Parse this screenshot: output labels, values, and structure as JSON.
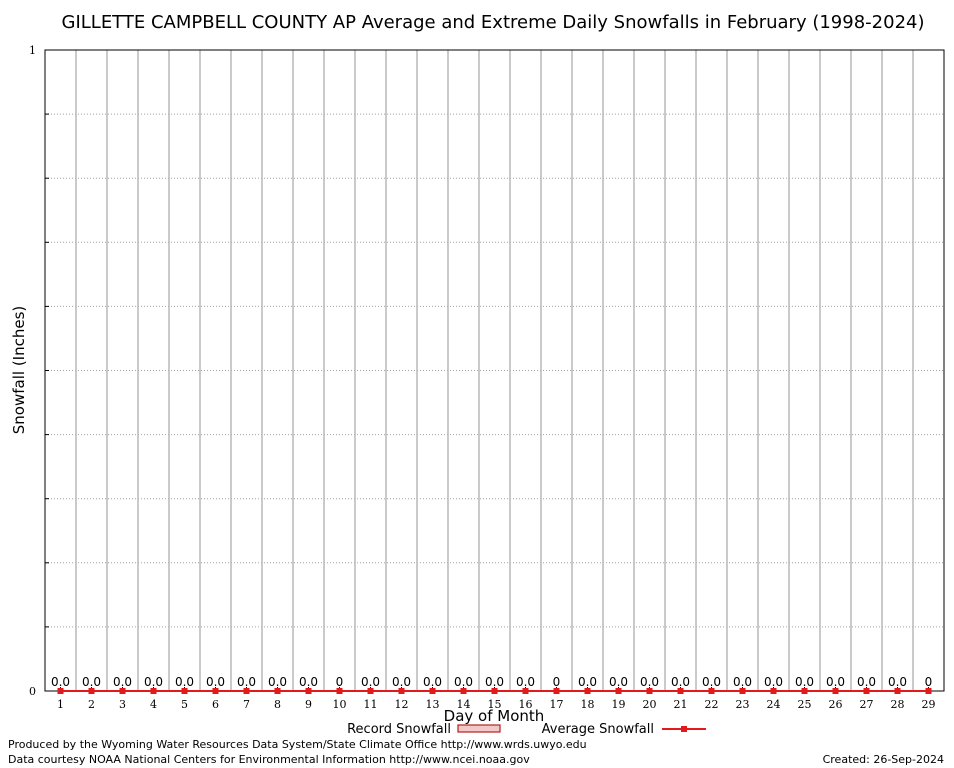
{
  "chart_data": {
    "type": "line",
    "title": "GILLETTE CAMPBELL COUNTY AP Average and Extreme Daily Snowfalls in February (1998-2024)",
    "xlabel": "Day of Month",
    "ylabel": "Snowfall (Inches)",
    "ylim": [
      0,
      1
    ],
    "y_ticks": [
      "0",
      "1"
    ],
    "grid": true,
    "categories": [
      "1",
      "2",
      "3",
      "4",
      "5",
      "6",
      "7",
      "8",
      "9",
      "10",
      "11",
      "12",
      "13",
      "14",
      "15",
      "16",
      "17",
      "18",
      "19",
      "20",
      "21",
      "22",
      "23",
      "24",
      "25",
      "26",
      "27",
      "28",
      "29"
    ],
    "series": [
      {
        "name": "Record Snowfall",
        "kind": "bar",
        "color": "#b22222",
        "values": [
          0,
          0,
          0,
          0,
          0,
          0,
          0,
          0,
          0,
          0,
          0,
          0,
          0,
          0,
          0,
          0,
          0,
          0,
          0,
          0,
          0,
          0,
          0,
          0,
          0,
          0,
          0,
          0,
          0
        ]
      },
      {
        "name": "Average Snowfall",
        "kind": "line",
        "color": "#e31a1c",
        "values": [
          0,
          0,
          0,
          0,
          0,
          0,
          0,
          0,
          0,
          0,
          0,
          0,
          0,
          0,
          0,
          0,
          0,
          0,
          0,
          0,
          0,
          0,
          0,
          0,
          0,
          0,
          0,
          0,
          0
        ]
      }
    ],
    "data_labels": [
      "0.0",
      "0.0",
      "0.0",
      "0.0",
      "0.0",
      "0.0",
      "0.0",
      "0.0",
      "0.0",
      "0",
      "0.0",
      "0.0",
      "0.0",
      "0.0",
      "0.0",
      "0.0",
      "0",
      "0.0",
      "0.0",
      "0.0",
      "0.0",
      "0.0",
      "0.0",
      "0.0",
      "0.0",
      "0.0",
      "0.0",
      "0.0",
      "0"
    ],
    "legend_placement": "bottom-center"
  },
  "footer": {
    "produced_by": "Produced by the Wyoming Water Resources Data System/State Climate Office http://www.wrds.uwyo.edu",
    "courtesy": "Data courtesy NOAA National Centers for Environmental Information http://www.ncei.noaa.gov",
    "created": "Created: 26-Sep-2024"
  }
}
